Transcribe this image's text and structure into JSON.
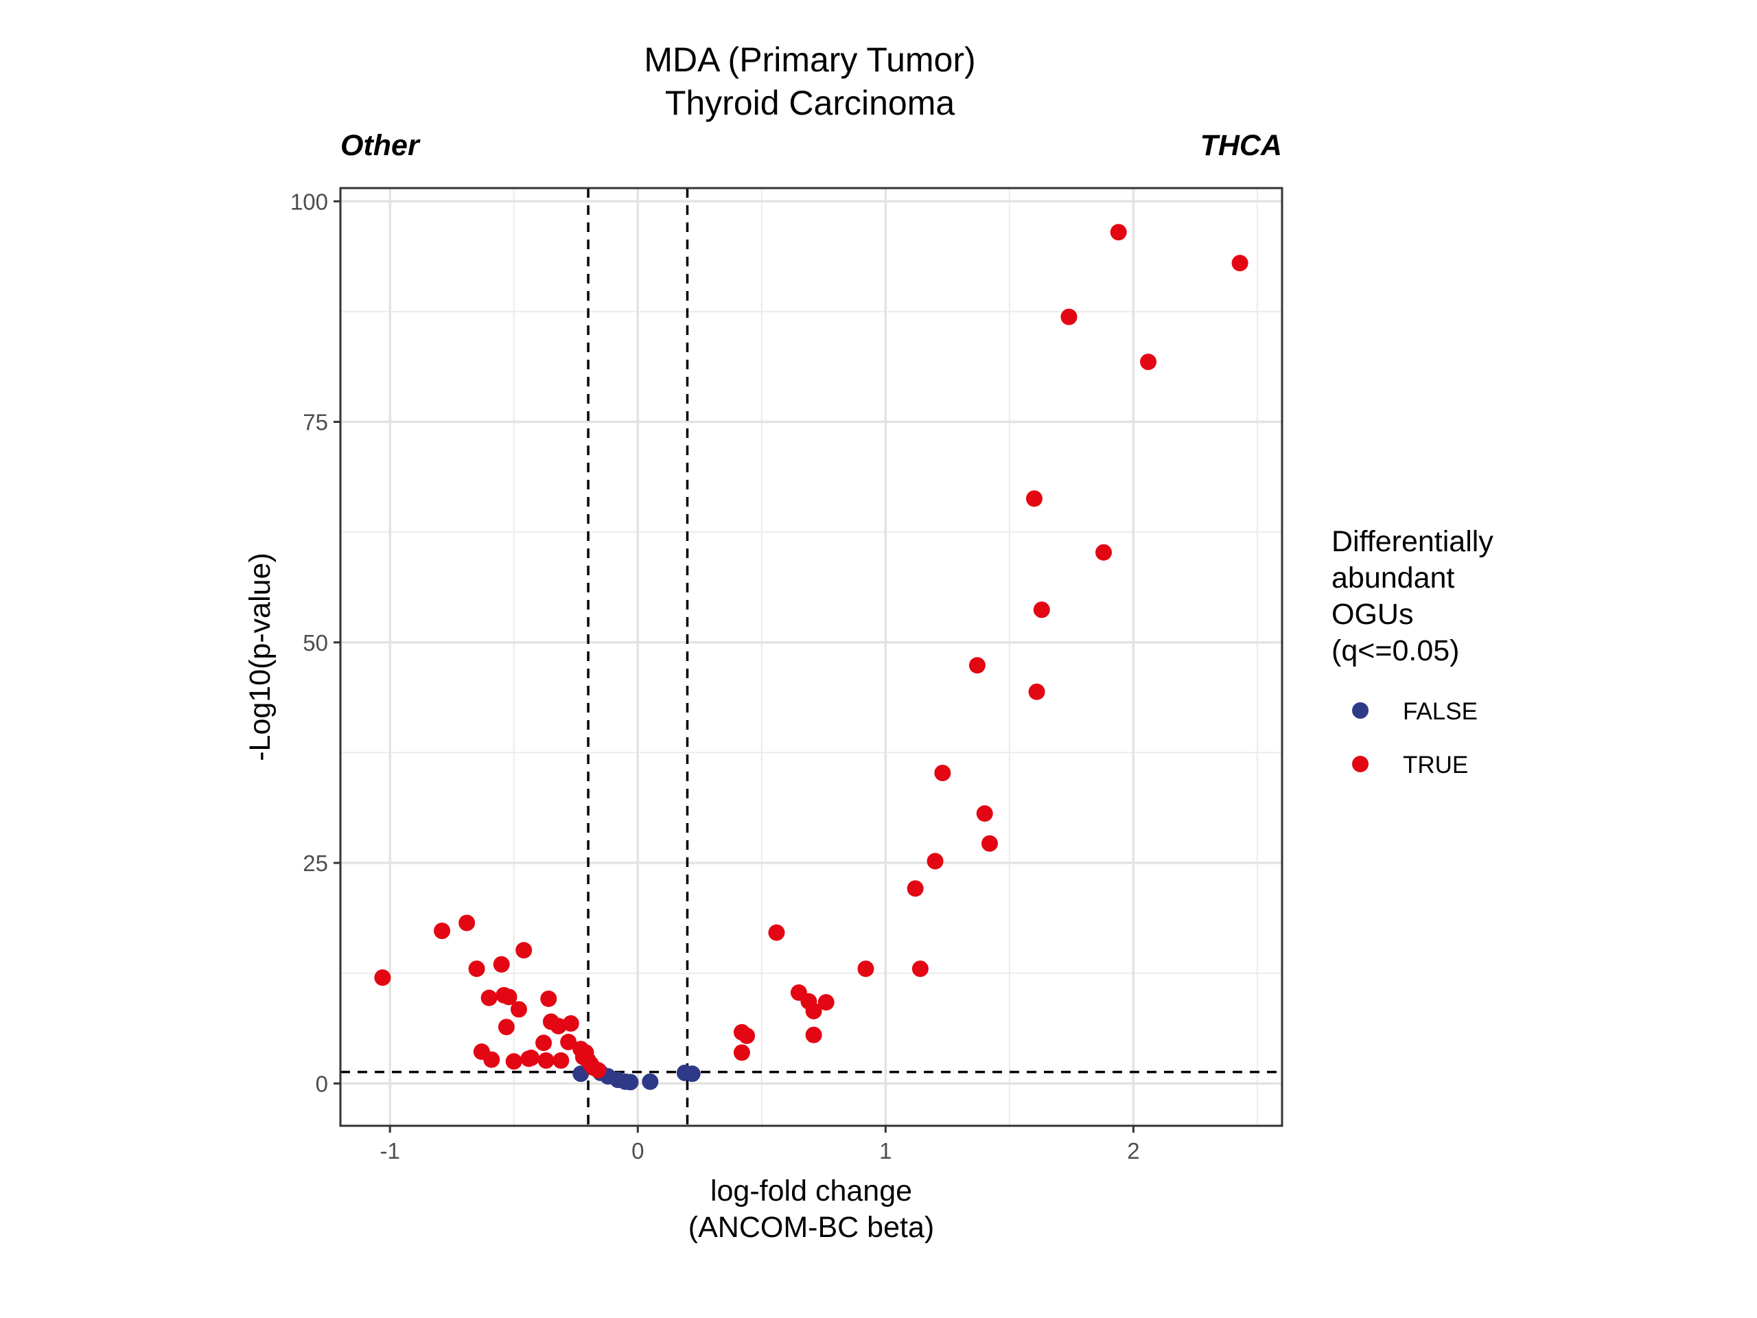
{
  "chart_data": {
    "type": "scatter",
    "title": "MDA (Primary Tumor)",
    "subtitle": "Thyroid Carcinoma",
    "left_label": "Other",
    "right_label": "THCA",
    "xlabel": "log-fold change",
    "xlabel_line2": "(ANCOM-BC beta)",
    "ylabel": "-Log10(p-value)",
    "xlim": [
      -1.2,
      2.6
    ],
    "ylim": [
      -4.8,
      101.5
    ],
    "x_ticks": [
      -1,
      0,
      1,
      2
    ],
    "x_tick_labels": [
      "-1",
      "0",
      "1",
      "2"
    ],
    "y_ticks": [
      0,
      25,
      50,
      75,
      100
    ],
    "y_tick_labels": [
      "0",
      "25",
      "50",
      "75",
      "100"
    ],
    "grid": true,
    "thresholds": {
      "vlines": [
        -0.2,
        0.2
      ],
      "hline": 1.3
    },
    "legend": {
      "title_lines": [
        "Differentially",
        "abundant",
        "OGUs",
        "(q<=0.05)"
      ],
      "placement": "right",
      "entries": [
        {
          "label": "FALSE",
          "color": "#2e3a87"
        },
        {
          "label": "TRUE",
          "color": "#e30613"
        }
      ]
    },
    "series": [
      {
        "name": "FALSE",
        "color": "#2e3a87",
        "points": [
          {
            "x": -0.23,
            "y": 1.1
          },
          {
            "x": -0.15,
            "y": 1.2
          },
          {
            "x": -0.12,
            "y": 0.8
          },
          {
            "x": -0.08,
            "y": 0.4
          },
          {
            "x": -0.05,
            "y": 0.2
          },
          {
            "x": -0.03,
            "y": 0.15
          },
          {
            "x": 0.05,
            "y": 0.2
          },
          {
            "x": 0.19,
            "y": 1.2
          },
          {
            "x": 0.22,
            "y": 1.1
          }
        ]
      },
      {
        "name": "TRUE",
        "color": "#e30613",
        "points": [
          {
            "x": -1.03,
            "y": 12.0
          },
          {
            "x": -0.79,
            "y": 17.3
          },
          {
            "x": -0.69,
            "y": 18.2
          },
          {
            "x": -0.65,
            "y": 13.0
          },
          {
            "x": -0.63,
            "y": 3.6
          },
          {
            "x": -0.6,
            "y": 9.7
          },
          {
            "x": -0.59,
            "y": 2.7
          },
          {
            "x": -0.55,
            "y": 13.5
          },
          {
            "x": -0.54,
            "y": 10.0
          },
          {
            "x": -0.53,
            "y": 6.4
          },
          {
            "x": -0.52,
            "y": 9.8
          },
          {
            "x": -0.5,
            "y": 2.5
          },
          {
            "x": -0.48,
            "y": 8.4
          },
          {
            "x": -0.46,
            "y": 15.1
          },
          {
            "x": -0.44,
            "y": 2.8
          },
          {
            "x": -0.43,
            "y": 2.9
          },
          {
            "x": -0.38,
            "y": 4.6
          },
          {
            "x": -0.37,
            "y": 2.6
          },
          {
            "x": -0.36,
            "y": 9.6
          },
          {
            "x": -0.35,
            "y": 7.0
          },
          {
            "x": -0.32,
            "y": 6.5
          },
          {
            "x": -0.31,
            "y": 2.6
          },
          {
            "x": -0.28,
            "y": 4.7
          },
          {
            "x": -0.27,
            "y": 6.8
          },
          {
            "x": -0.23,
            "y": 3.9
          },
          {
            "x": -0.22,
            "y": 3.0
          },
          {
            "x": -0.21,
            "y": 3.5
          },
          {
            "x": -0.2,
            "y": 2.6
          },
          {
            "x": -0.19,
            "y": 2.2
          },
          {
            "x": -0.18,
            "y": 1.8
          },
          {
            "x": -0.16,
            "y": 1.5
          },
          {
            "x": 0.42,
            "y": 5.8
          },
          {
            "x": 0.42,
            "y": 3.5
          },
          {
            "x": 0.44,
            "y": 5.4
          },
          {
            "x": 0.56,
            "y": 17.1
          },
          {
            "x": 0.65,
            "y": 10.3
          },
          {
            "x": 0.69,
            "y": 9.3
          },
          {
            "x": 0.71,
            "y": 8.2
          },
          {
            "x": 0.71,
            "y": 5.5
          },
          {
            "x": 0.76,
            "y": 9.2
          },
          {
            "x": 0.92,
            "y": 13.0
          },
          {
            "x": 1.12,
            "y": 22.1
          },
          {
            "x": 1.14,
            "y": 13.0
          },
          {
            "x": 1.2,
            "y": 25.2
          },
          {
            "x": 1.23,
            "y": 35.2
          },
          {
            "x": 1.37,
            "y": 47.4
          },
          {
            "x": 1.4,
            "y": 30.6
          },
          {
            "x": 1.42,
            "y": 27.2
          },
          {
            "x": 1.6,
            "y": 66.3
          },
          {
            "x": 1.61,
            "y": 44.4
          },
          {
            "x": 1.63,
            "y": 53.7
          },
          {
            "x": 1.74,
            "y": 86.9
          },
          {
            "x": 1.88,
            "y": 60.2
          },
          {
            "x": 1.94,
            "y": 96.5
          },
          {
            "x": 2.06,
            "y": 81.8
          },
          {
            "x": 2.43,
            "y": 93.0
          }
        ]
      }
    ]
  }
}
